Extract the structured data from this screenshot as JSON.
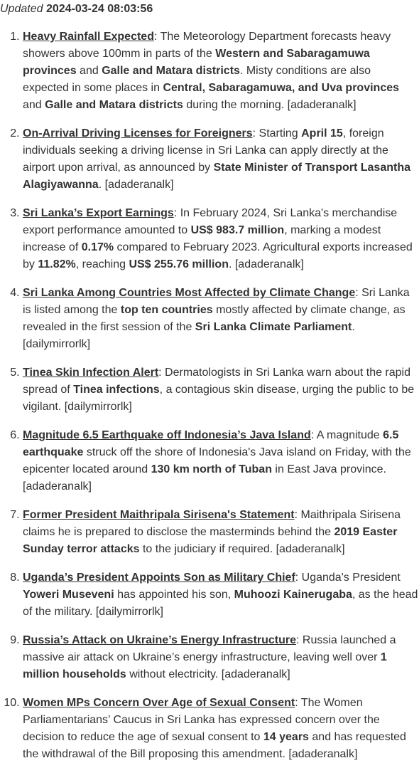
{
  "header": {
    "updated_label": "Updated",
    "timestamp": "2024-03-24 08:03:56"
  },
  "items": [
    {
      "headline": "Heavy Rainfall Expected",
      "parts": [
        {
          "t": ": The Meteorology Department forecasts heavy showers above 100mm in parts of the "
        },
        {
          "t": "Western and Sabaragamuwa provinces",
          "b": true
        },
        {
          "t": " and "
        },
        {
          "t": "Galle and Matara districts",
          "b": true
        },
        {
          "t": ". Misty conditions are also expected in some places in "
        },
        {
          "t": "Central, Sabaragamuwa, and Uva provinces",
          "b": true
        },
        {
          "t": " and "
        },
        {
          "t": "Galle and Matara districts",
          "b": true
        },
        {
          "t": " during the morning. [adaderanalk]"
        }
      ]
    },
    {
      "headline": "On-Arrival Driving Licenses for Foreigners",
      "parts": [
        {
          "t": ": Starting "
        },
        {
          "t": "April 15",
          "b": true
        },
        {
          "t": ", foreign individuals seeking a driving license in Sri Lanka can apply directly at the airport upon arrival, as announced by "
        },
        {
          "t": "State Minister of Transport Lasantha Alagiyawanna",
          "b": true
        },
        {
          "t": ". [adaderanalk]"
        }
      ]
    },
    {
      "headline": "Sri Lanka’s Export Earnings",
      "parts": [
        {
          "t": ": In February 2024, Sri Lanka's merchandise export performance amounted to "
        },
        {
          "t": "US$ 983.7 million",
          "b": true
        },
        {
          "t": ", marking a modest increase of "
        },
        {
          "t": "0.17%",
          "b": true
        },
        {
          "t": " compared to February 2023. Agricultural exports increased by "
        },
        {
          "t": "11.82%",
          "b": true
        },
        {
          "t": ", reaching "
        },
        {
          "t": "US$ 255.76 million",
          "b": true
        },
        {
          "t": ". [adaderanalk]"
        }
      ]
    },
    {
      "headline": "Sri Lanka Among Countries Most Affected by Climate Change",
      "parts": [
        {
          "t": ": Sri Lanka is listed among the "
        },
        {
          "t": "top ten countries",
          "b": true
        },
        {
          "t": " mostly affected by climate change, as revealed in the first session of the "
        },
        {
          "t": "Sri Lanka Climate Parliament",
          "b": true
        },
        {
          "t": ". [dailymirrorlk]"
        }
      ]
    },
    {
      "headline": "Tinea Skin Infection Alert",
      "parts": [
        {
          "t": ": Dermatologists in Sri Lanka warn about the rapid spread of "
        },
        {
          "t": "Tinea infections",
          "b": true
        },
        {
          "t": ", a contagious skin disease, urging the public to be vigilant. [dailymirrorlk]"
        }
      ]
    },
    {
      "headline": "Magnitude 6.5 Earthquake off Indonesia’s Java Island",
      "parts": [
        {
          "t": ": A magnitude "
        },
        {
          "t": "6.5 earthquake",
          "b": true
        },
        {
          "t": " struck off the shore of Indonesia's Java island on Friday, with the epicenter located around "
        },
        {
          "t": "130 km north of Tuban",
          "b": true
        },
        {
          "t": " in East Java province. [adaderanalk]"
        }
      ]
    },
    {
      "headline": "Former President Maithripala Sirisena's Statement",
      "parts": [
        {
          "t": ": Maithripala Sirisena claims he is prepared to disclose the masterminds behind the "
        },
        {
          "t": "2019 Easter Sunday terror attacks",
          "b": true
        },
        {
          "t": " to the judiciary if required. [adaderanalk]"
        }
      ]
    },
    {
      "headline": "Uganda’s President Appoints Son as Military Chief",
      "parts": [
        {
          "t": ": Uganda's President "
        },
        {
          "t": "Yoweri Museveni",
          "b": true
        },
        {
          "t": " has appointed his son, "
        },
        {
          "t": "Muhoozi Kainerugaba",
          "b": true
        },
        {
          "t": ", as the head of the military. [dailymirrorlk]"
        }
      ]
    },
    {
      "headline": "Russia’s Attack on Ukraine’s Energy Infrastructure",
      "parts": [
        {
          "t": ": Russia launched a massive air attack on Ukraine’s energy infrastructure, leaving well over "
        },
        {
          "t": "1 million households",
          "b": true
        },
        {
          "t": " without electricity. [adaderanalk]"
        }
      ]
    },
    {
      "headline": "Women MPs Concern Over Age of Sexual Consent",
      "parts": [
        {
          "t": ": The Women Parliamentarians’ Caucus in Sri Lanka has expressed concern over the decision to reduce the age of sexual consent to "
        },
        {
          "t": "14 years",
          "b": true
        },
        {
          "t": " and has requested the withdrawal of the Bill proposing this amendment. [adaderanalk]"
        }
      ]
    }
  ]
}
